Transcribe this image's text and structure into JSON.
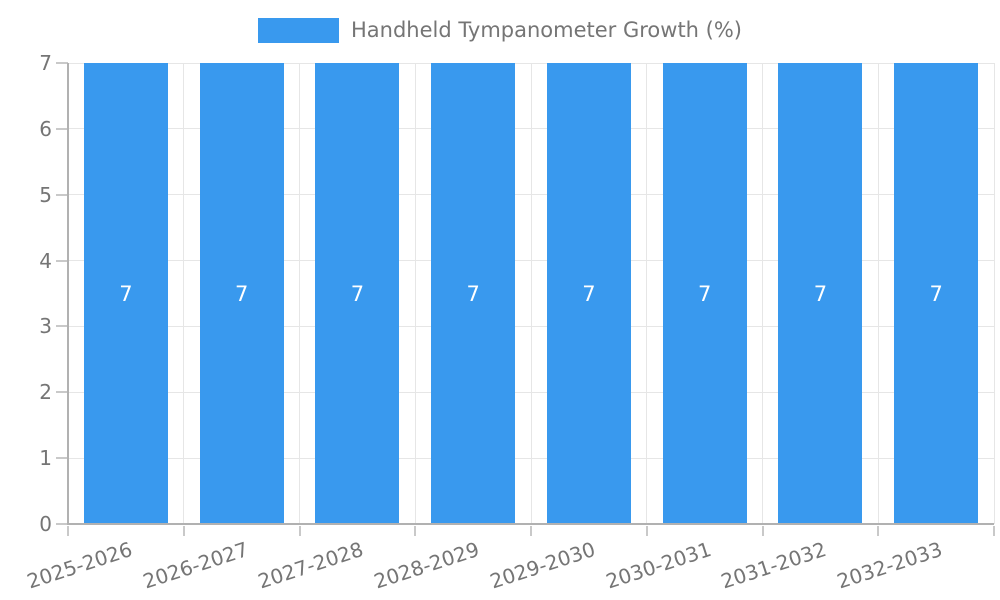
{
  "legend": {
    "label": "Handheld Tympanometer Growth (%)"
  },
  "colors": {
    "bar": "#3999ee",
    "text": "#757575",
    "grid": "#e6e6e6",
    "tick": "#c9c9c9",
    "axis": "#b1b1b1",
    "value_label": "#ffffff",
    "background": "#ffffff"
  },
  "chart_data": {
    "type": "bar",
    "title": "Handheld Tympanometer Growth (%)",
    "categories": [
      "2025-2026",
      "2026-2027",
      "2027-2028",
      "2028-2029",
      "2029-2030",
      "2030-2031",
      "2031-2032",
      "2032-2033"
    ],
    "values": [
      7,
      7,
      7,
      7,
      7,
      7,
      7,
      7
    ],
    "data_labels": [
      "7",
      "7",
      "7",
      "7",
      "7",
      "7",
      "7",
      "7"
    ],
    "xlabel": "",
    "ylabel": "",
    "ylim": [
      0,
      7
    ],
    "yticks": [
      0,
      1,
      2,
      3,
      4,
      5,
      6,
      7
    ],
    "grid": true,
    "legend_position": "top",
    "x_label_rotation_deg": -18
  }
}
